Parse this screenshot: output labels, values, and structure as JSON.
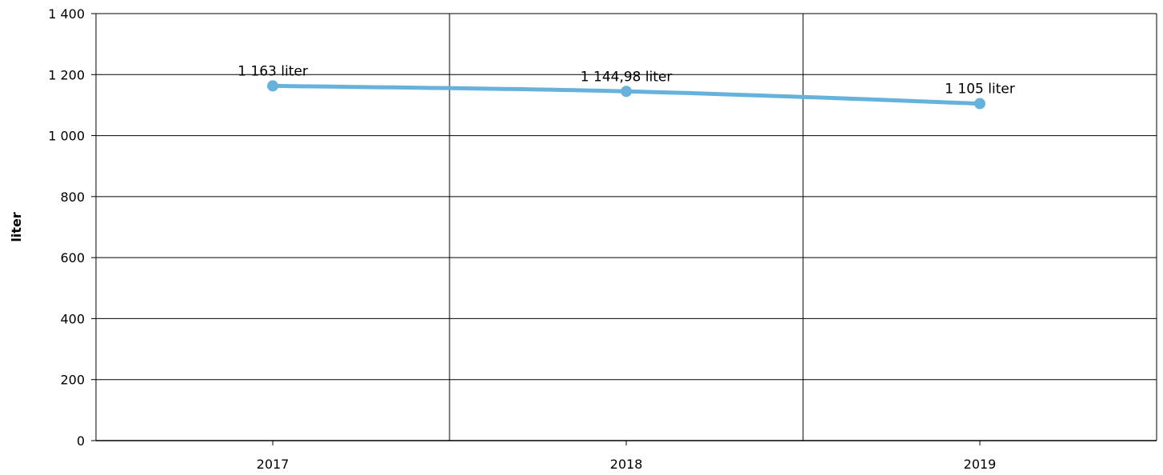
{
  "chart_data": {
    "type": "line",
    "title": "",
    "xlabel": "",
    "ylabel": "liter",
    "categories": [
      "2017",
      "2018",
      "2019"
    ],
    "series": [
      {
        "values": [
          1163,
          1144.98,
          1105
        ],
        "data_labels": [
          "1 163 liter",
          "1 144,98 liter",
          "1 105 liter"
        ],
        "color": "#66b2dd",
        "smooth": true,
        "markers": true
      }
    ],
    "ylim": [
      0,
      1400
    ],
    "y_ticks": [
      0,
      200,
      400,
      600,
      800,
      1000,
      1200,
      1400
    ],
    "y_tick_labels": [
      "0",
      "200",
      "400",
      "600",
      "800",
      "1 000",
      "1 200",
      "1 400"
    ],
    "grid": true,
    "legend": "none"
  }
}
